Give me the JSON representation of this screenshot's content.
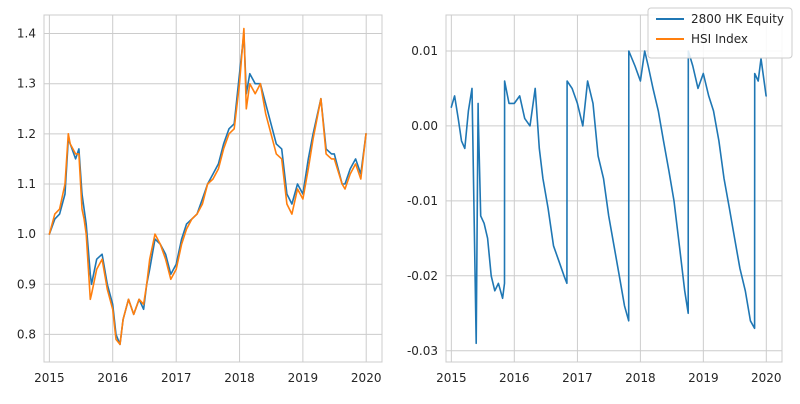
{
  "chart_data": [
    {
      "type": "line",
      "title": "",
      "xlabel": "",
      "ylabel": "",
      "x_ticks": [
        "2015",
        "2016",
        "2017",
        "2018",
        "2019",
        "2020"
      ],
      "y_ticks": [
        "0.8",
        "0.9",
        "1.0",
        "1.1",
        "1.2",
        "1.3",
        "1.4"
      ],
      "xlim": [
        "2014-12-01",
        "2020-04-01"
      ],
      "ylim": [
        0.745,
        1.437
      ],
      "grid": true,
      "series": [
        {
          "name": "2800 HK Equity",
          "color": "#1f77b4",
          "x": [
            "2015-01-01",
            "2015-02-01",
            "2015-03-01",
            "2015-04-01",
            "2015-04-20",
            "2015-05-01",
            "2015-06-01",
            "2015-06-20",
            "2015-07-08",
            "2015-07-20",
            "2015-08-01",
            "2015-08-25",
            "2015-09-01",
            "2015-10-01",
            "2015-11-01",
            "2015-12-01",
            "2016-01-01",
            "2016-01-20",
            "2016-02-12",
            "2016-03-01",
            "2016-04-01",
            "2016-05-01",
            "2016-06-01",
            "2016-06-27",
            "2016-07-15",
            "2016-08-01",
            "2016-09-01",
            "2016-10-01",
            "2016-11-01",
            "2016-12-01",
            "2017-01-01",
            "2017-02-01",
            "2017-03-01",
            "2017-04-01",
            "2017-05-01",
            "2017-06-01",
            "2017-07-01",
            "2017-08-01",
            "2017-09-01",
            "2017-10-01",
            "2017-11-01",
            "2017-12-01",
            "2018-01-01",
            "2018-01-26",
            "2018-02-09",
            "2018-03-01",
            "2018-04-01",
            "2018-05-01",
            "2018-06-01",
            "2018-07-01",
            "2018-08-01",
            "2018-09-01",
            "2018-10-01",
            "2018-10-30",
            "2018-12-01",
            "2019-01-01",
            "2019-02-01",
            "2019-03-01",
            "2019-04-15",
            "2019-05-15",
            "2019-06-15",
            "2019-07-01",
            "2019-08-15",
            "2019-09-01",
            "2019-10-01",
            "2019-11-01",
            "2019-12-01",
            "2019-12-31"
          ],
          "values": [
            1.0,
            1.03,
            1.04,
            1.08,
            1.19,
            1.18,
            1.15,
            1.17,
            1.08,
            1.05,
            1.02,
            0.92,
            0.9,
            0.95,
            0.96,
            0.9,
            0.86,
            0.8,
            0.78,
            0.83,
            0.87,
            0.84,
            0.87,
            0.85,
            0.9,
            0.93,
            0.99,
            0.98,
            0.96,
            0.92,
            0.94,
            0.99,
            1.02,
            1.03,
            1.04,
            1.07,
            1.1,
            1.12,
            1.14,
            1.18,
            1.21,
            1.22,
            1.32,
            1.4,
            1.28,
            1.32,
            1.3,
            1.3,
            1.26,
            1.22,
            1.18,
            1.17,
            1.08,
            1.06,
            1.1,
            1.08,
            1.15,
            1.2,
            1.27,
            1.17,
            1.16,
            1.16,
            1.1,
            1.1,
            1.13,
            1.15,
            1.12,
            1.2
          ]
        },
        {
          "name": "HSI Index",
          "color": "#ff7f0e",
          "x": [
            "2015-01-01",
            "2015-02-01",
            "2015-03-01",
            "2015-04-01",
            "2015-04-20",
            "2015-05-01",
            "2015-06-01",
            "2015-06-20",
            "2015-07-08",
            "2015-07-20",
            "2015-08-01",
            "2015-08-25",
            "2015-09-01",
            "2015-10-01",
            "2015-11-01",
            "2015-12-01",
            "2016-01-01",
            "2016-01-20",
            "2016-02-12",
            "2016-03-01",
            "2016-04-01",
            "2016-05-01",
            "2016-06-01",
            "2016-06-27",
            "2016-07-15",
            "2016-08-01",
            "2016-09-01",
            "2016-10-01",
            "2016-11-01",
            "2016-12-01",
            "2017-01-01",
            "2017-02-01",
            "2017-03-01",
            "2017-04-01",
            "2017-05-01",
            "2017-06-01",
            "2017-07-01",
            "2017-08-01",
            "2017-09-01",
            "2017-10-01",
            "2017-11-01",
            "2017-12-01",
            "2018-01-01",
            "2018-01-26",
            "2018-02-09",
            "2018-03-01",
            "2018-04-01",
            "2018-05-01",
            "2018-06-01",
            "2018-07-01",
            "2018-08-01",
            "2018-09-01",
            "2018-10-01",
            "2018-10-30",
            "2018-12-01",
            "2019-01-01",
            "2019-02-01",
            "2019-03-01",
            "2019-04-15",
            "2019-05-15",
            "2019-06-15",
            "2019-07-01",
            "2019-08-15",
            "2019-09-01",
            "2019-10-01",
            "2019-11-01",
            "2019-12-01",
            "2019-12-31"
          ],
          "values": [
            1.0,
            1.04,
            1.05,
            1.1,
            1.2,
            1.18,
            1.16,
            1.16,
            1.05,
            1.03,
            1.0,
            0.87,
            0.88,
            0.93,
            0.95,
            0.89,
            0.85,
            0.79,
            0.78,
            0.83,
            0.87,
            0.84,
            0.87,
            0.86,
            0.9,
            0.95,
            1.0,
            0.98,
            0.95,
            0.91,
            0.93,
            0.98,
            1.01,
            1.03,
            1.04,
            1.06,
            1.1,
            1.11,
            1.13,
            1.17,
            1.2,
            1.21,
            1.3,
            1.41,
            1.25,
            1.3,
            1.28,
            1.3,
            1.24,
            1.2,
            1.16,
            1.15,
            1.06,
            1.04,
            1.09,
            1.07,
            1.13,
            1.19,
            1.27,
            1.16,
            1.15,
            1.15,
            1.1,
            1.09,
            1.12,
            1.14,
            1.11,
            1.2
          ]
        }
      ]
    },
    {
      "type": "line",
      "title": "",
      "xlabel": "",
      "ylabel": "",
      "x_ticks": [
        "2015",
        "2016",
        "2017",
        "2018",
        "2019",
        "2020"
      ],
      "y_ticks": [
        "-0.03",
        "-0.02",
        "-0.01",
        "0.00",
        "0.01"
      ],
      "xlim": [
        "2014-12-01",
        "2020-04-01"
      ],
      "ylim": [
        -0.0315,
        0.0148
      ],
      "grid": true,
      "legend": {
        "placement": "top-right",
        "entries": [
          {
            "label": "2800 HK Equity",
            "color": "#1f77b4"
          },
          {
            "label": "HSI Index",
            "color": "#ff7f0e"
          }
        ]
      },
      "series": [
        {
          "name": "",
          "color": "#1f77b4",
          "x": [
            "2015-01-01",
            "2015-01-20",
            "2015-02-10",
            "2015-03-01",
            "2015-03-20",
            "2015-04-10",
            "2015-05-01",
            "2015-05-25",
            "2015-06-05",
            "2015-06-06",
            "2015-06-20",
            "2015-07-10",
            "2015-07-30",
            "2015-08-20",
            "2015-09-10",
            "2015-10-01",
            "2015-10-25",
            "2015-11-05",
            "2015-11-06",
            "2015-12-01",
            "2016-01-01",
            "2016-02-01",
            "2016-03-01",
            "2016-04-01",
            "2016-05-01",
            "2016-05-25",
            "2016-06-15",
            "2016-07-15",
            "2016-08-15",
            "2016-09-15",
            "2016-10-15",
            "2016-11-01",
            "2016-11-02",
            "2016-12-01",
            "2017-01-01",
            "2017-02-01",
            "2017-03-01",
            "2017-04-01",
            "2017-05-01",
            "2017-06-01",
            "2017-07-01",
            "2017-08-01",
            "2017-09-01",
            "2017-10-01",
            "2017-10-25",
            "2017-10-26",
            "2017-12-01",
            "2018-01-01",
            "2018-01-26",
            "2018-02-15",
            "2018-03-15",
            "2018-04-15",
            "2018-05-15",
            "2018-06-15",
            "2018-07-15",
            "2018-08-15",
            "2018-09-15",
            "2018-10-05",
            "2018-10-06",
            "2018-11-01",
            "2018-12-01",
            "2019-01-01",
            "2019-02-01",
            "2019-03-01",
            "2019-04-01",
            "2019-05-01",
            "2019-06-01",
            "2019-07-01",
            "2019-08-01",
            "2019-09-01",
            "2019-10-01",
            "2019-10-25",
            "2019-10-26",
            "2019-11-15",
            "2019-12-01",
            "2019-12-31"
          ],
          "values": [
            0.0025,
            0.004,
            0.001,
            -0.002,
            -0.003,
            0.002,
            0.005,
            -0.029,
            0.003,
            0.001,
            -0.012,
            -0.013,
            -0.015,
            -0.02,
            -0.022,
            -0.021,
            -0.023,
            -0.021,
            0.006,
            0.003,
            0.003,
            0.004,
            0.001,
            0.0,
            0.005,
            -0.003,
            -0.007,
            -0.011,
            -0.016,
            -0.018,
            -0.02,
            -0.021,
            0.006,
            0.005,
            0.003,
            0.0,
            0.006,
            0.003,
            -0.004,
            -0.007,
            -0.012,
            -0.016,
            -0.02,
            -0.024,
            -0.026,
            0.01,
            0.008,
            0.006,
            0.01,
            0.008,
            0.005,
            0.002,
            -0.002,
            -0.006,
            -0.01,
            -0.016,
            -0.022,
            -0.025,
            0.01,
            0.008,
            0.005,
            0.007,
            0.004,
            0.002,
            -0.002,
            -0.007,
            -0.011,
            -0.015,
            -0.019,
            -0.022,
            -0.026,
            -0.027,
            0.007,
            0.006,
            0.009,
            0.004
          ]
        }
      ]
    }
  ]
}
